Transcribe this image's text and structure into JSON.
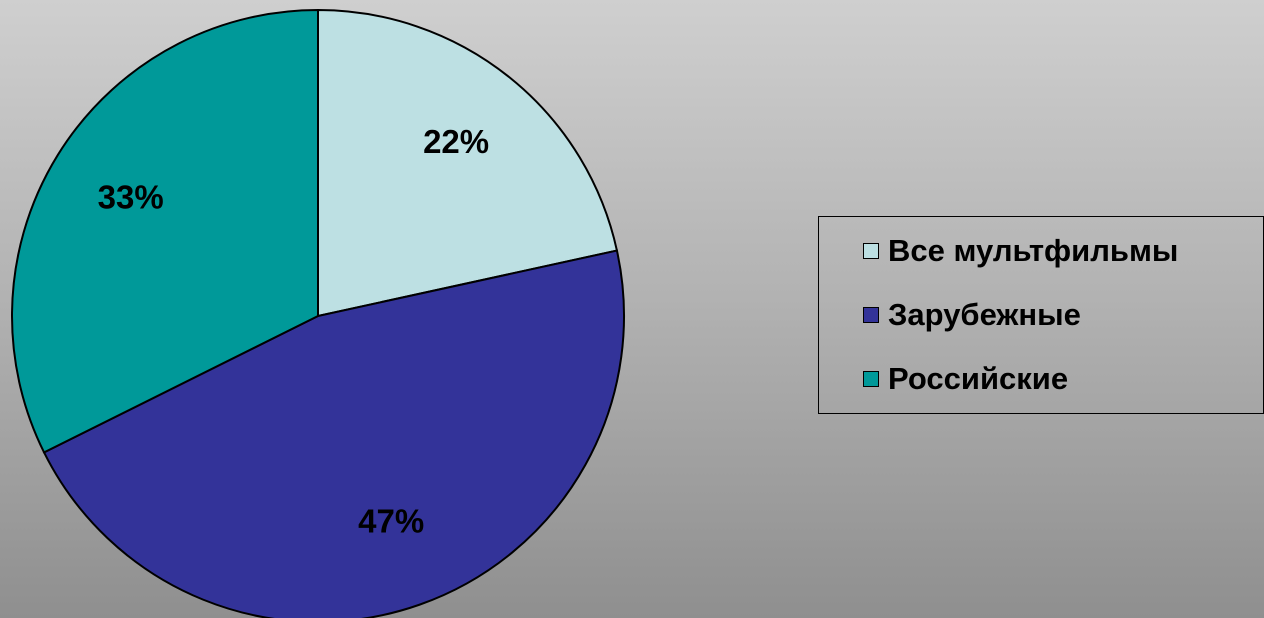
{
  "chart_data": {
    "type": "pie",
    "categories": [
      "Все мультфильмы",
      "Зарубежные",
      "Российские"
    ],
    "values": [
      22,
      47,
      33
    ],
    "labels": [
      "22%",
      "47%",
      "33%"
    ],
    "colors": [
      "#bde0e3",
      "#333399",
      "#009999"
    ],
    "legend_position": "right"
  }
}
